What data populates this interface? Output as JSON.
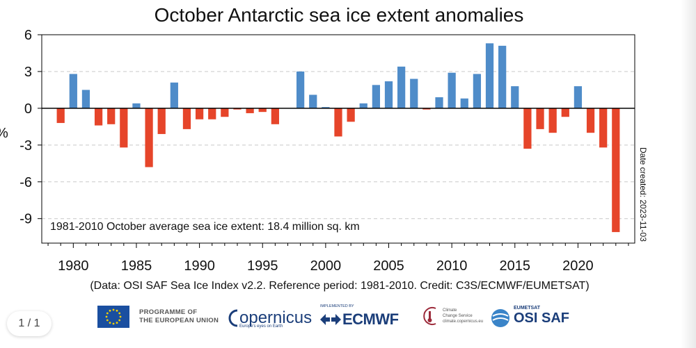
{
  "chart_data": {
    "type": "bar",
    "title": "October Antarctic sea ice extent anomalies",
    "ylabel": "%",
    "xlabel": "",
    "ylim": [
      -11,
      6
    ],
    "yticks": [
      6,
      3,
      0,
      -3,
      -6,
      -9
    ],
    "xlim": [
      1977.5,
      2024.5
    ],
    "xticks": [
      1980,
      1985,
      1990,
      1995,
      2000,
      2005,
      2010,
      2015,
      2020
    ],
    "years": [
      1979,
      1980,
      1981,
      1982,
      1983,
      1984,
      1985,
      1986,
      1987,
      1988,
      1989,
      1990,
      1991,
      1992,
      1993,
      1994,
      1995,
      1996,
      1997,
      1998,
      1999,
      2000,
      2001,
      2002,
      2003,
      2004,
      2005,
      2006,
      2007,
      2008,
      2009,
      2010,
      2011,
      2012,
      2013,
      2014,
      2015,
      2016,
      2017,
      2018,
      2019,
      2020,
      2021,
      2022,
      2023
    ],
    "values": [
      -1.2,
      2.8,
      1.5,
      -1.4,
      -1.3,
      -3.2,
      0.4,
      -4.8,
      -2.1,
      2.1,
      -1.7,
      -0.9,
      -0.9,
      -0.7,
      -0.1,
      -0.4,
      -0.3,
      -1.3,
      0.0,
      3.0,
      1.1,
      0.1,
      -2.3,
      -1.1,
      0.4,
      1.9,
      2.2,
      3.4,
      2.4,
      -0.1,
      0.9,
      2.9,
      0.8,
      2.8,
      5.3,
      5.1,
      1.8,
      -3.3,
      -1.7,
      -2.0,
      -0.7,
      1.8,
      -2.0,
      -3.2,
      -10.1
    ],
    "positive_color": "#4f8cc9",
    "negative_color": "#e6452a",
    "annotation": "1981-2010 October average sea ice extent: 18.4 million sq. km",
    "side_note": "Date created: 2023-11-03",
    "caption": "(Data: OSI SAF Sea Ice Index v2.2.  Reference period: 1981-2010.  Credit: C3S/ECMWF/EUMETSAT)"
  },
  "footer": {
    "eu_line1": "PROGRAMME OF",
    "eu_line2": "THE EUROPEAN UNION",
    "copernicus": "opernicus",
    "copernicus_tagline": "Europe's eyes on Earth",
    "ecmwf_small": "IMPLEMENTED BY",
    "ecmwf": "ECMWF",
    "c3s_line1": "Climate",
    "c3s_line2": "Change Service",
    "c3s_url": "climate.copernicus.eu",
    "eumetsat": "EUMETSAT",
    "osisaf": "OSI SAF"
  },
  "pager": {
    "label": "1 / 1"
  }
}
